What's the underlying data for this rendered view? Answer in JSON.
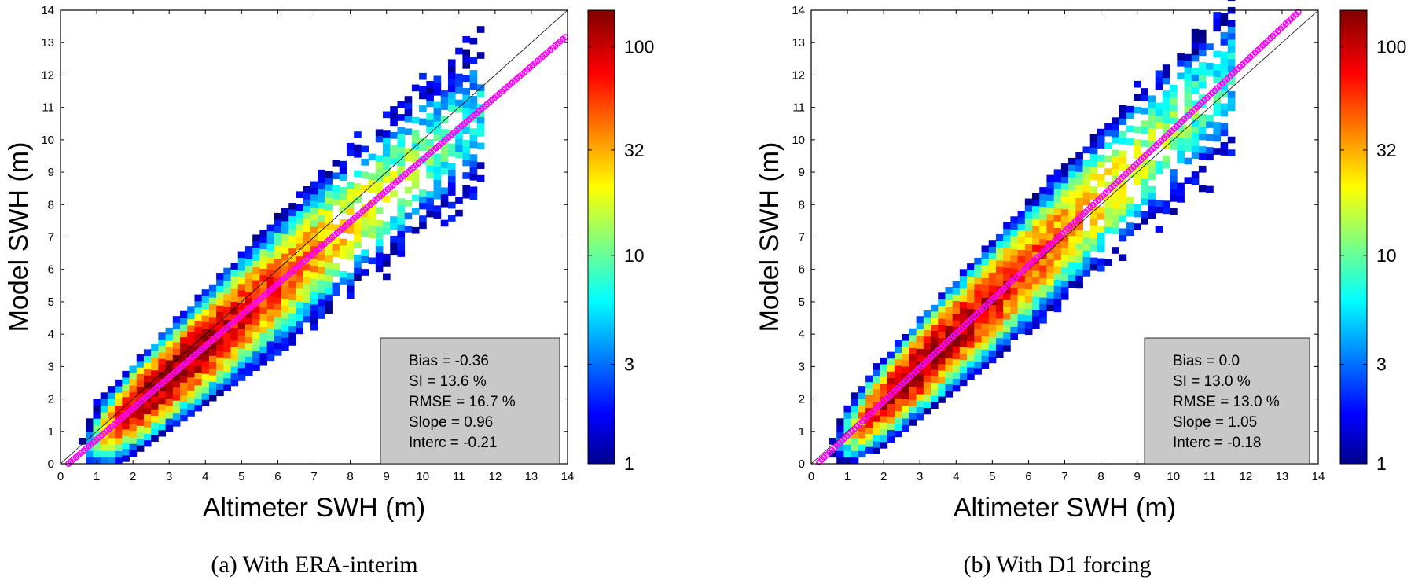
{
  "chart_data": [
    {
      "type": "heatmap",
      "subtitle": "(a) With ERA-interim",
      "xlabel": "Altimeter SWH (m)",
      "ylabel": "Model SWH (m)",
      "xlim": [
        0,
        14
      ],
      "ylim": [
        0,
        14
      ],
      "xticks": [
        0,
        1,
        2,
        3,
        4,
        5,
        6,
        7,
        8,
        9,
        10,
        11,
        12,
        13,
        14
      ],
      "yticks": [
        0,
        1,
        2,
        3,
        4,
        5,
        6,
        7,
        8,
        9,
        10,
        11,
        12,
        13,
        14
      ],
      "colorbar": {
        "scale": "log",
        "min": 1,
        "max": 150,
        "ticks": [
          1,
          3,
          10,
          32,
          100
        ]
      },
      "fit_line": {
        "slope": 0.96,
        "intercept": -0.21,
        "color": "#ff00ff"
      },
      "reference_line": "1:1",
      "stats": {
        "bias": "Bias = -0.36",
        "si": "SI = 13.6 %",
        "rmse": "RMSE = 16.7 %",
        "slope": "Slope = 0.96",
        "interc": "Interc = -0.21"
      },
      "density": {
        "center_slope": 0.96,
        "center_intercept": -0.21,
        "peak_x": 2.9,
        "width_x": 1.2,
        "spread_y": 0.5,
        "max_x": 11.5,
        "seed": 7
      }
    },
    {
      "type": "heatmap",
      "subtitle": "(b) With D1 forcing",
      "xlabel": "Altimeter SWH (m)",
      "ylabel": "Model SWH (m)",
      "xlim": [
        0,
        14
      ],
      "ylim": [
        0,
        14
      ],
      "xticks": [
        0,
        1,
        2,
        3,
        4,
        5,
        6,
        7,
        8,
        9,
        10,
        11,
        12,
        13,
        14
      ],
      "yticks": [
        0,
        1,
        2,
        3,
        4,
        5,
        6,
        7,
        8,
        9,
        10,
        11,
        12,
        13,
        14
      ],
      "colorbar": {
        "scale": "log",
        "min": 1,
        "max": 150,
        "ticks": [
          1,
          3,
          10,
          32,
          100
        ]
      },
      "fit_line": {
        "slope": 1.05,
        "intercept": -0.18,
        "color": "#ff00ff"
      },
      "reference_line": "1:1",
      "stats": {
        "bias": "Bias = 0.0",
        "si": "SI = 13.0 %",
        "rmse": "RMSE = 13.0 %",
        "slope": "Slope = 1.05",
        "interc": "Interc = -0.18"
      },
      "density": {
        "center_slope": 1.05,
        "center_intercept": -0.18,
        "peak_x": 3.0,
        "width_x": 1.25,
        "spread_y": 0.48,
        "max_x": 11.5,
        "seed": 13
      }
    }
  ]
}
